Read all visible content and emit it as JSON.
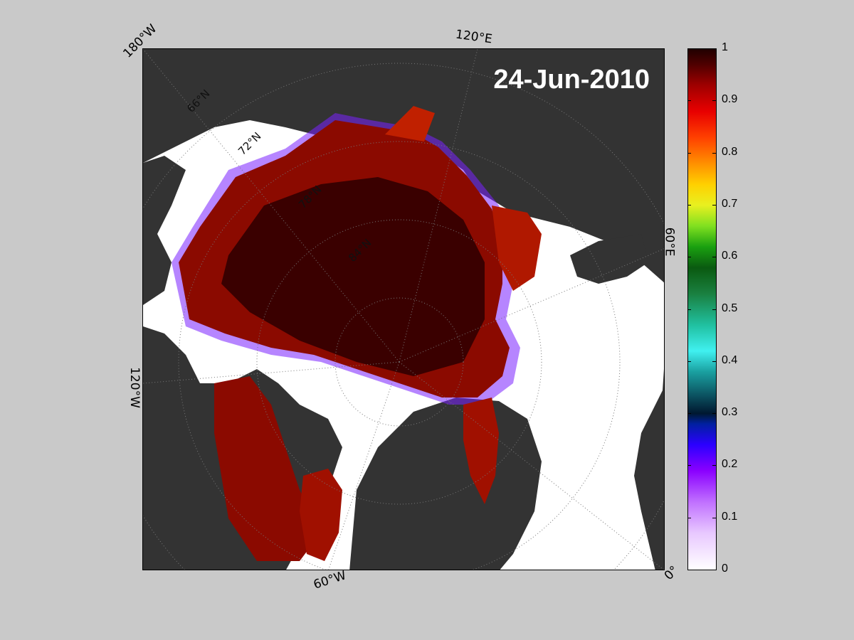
{
  "map": {
    "date_label": "24-Jun-2010",
    "longitude_labels": {
      "top_left": "180°W",
      "top": "120°E",
      "right": "60°E",
      "left": "120°W",
      "bottom": "60°W",
      "bottom_right": "0°"
    },
    "latitude_labels": [
      "66°N",
      "72°N",
      "78°N",
      "84°N"
    ]
  },
  "colorbar": {
    "ticks": [
      "0",
      "0.1",
      "0.2",
      "0.3",
      "0.4",
      "0.5",
      "0.6",
      "0.7",
      "0.8",
      "0.9",
      "1"
    ],
    "min": 0,
    "max": 1
  },
  "colors": {
    "land": "#333333",
    "ocean_open": "#ffffff",
    "ice_high": "#2a0000",
    "background": "#c9c9c9"
  }
}
